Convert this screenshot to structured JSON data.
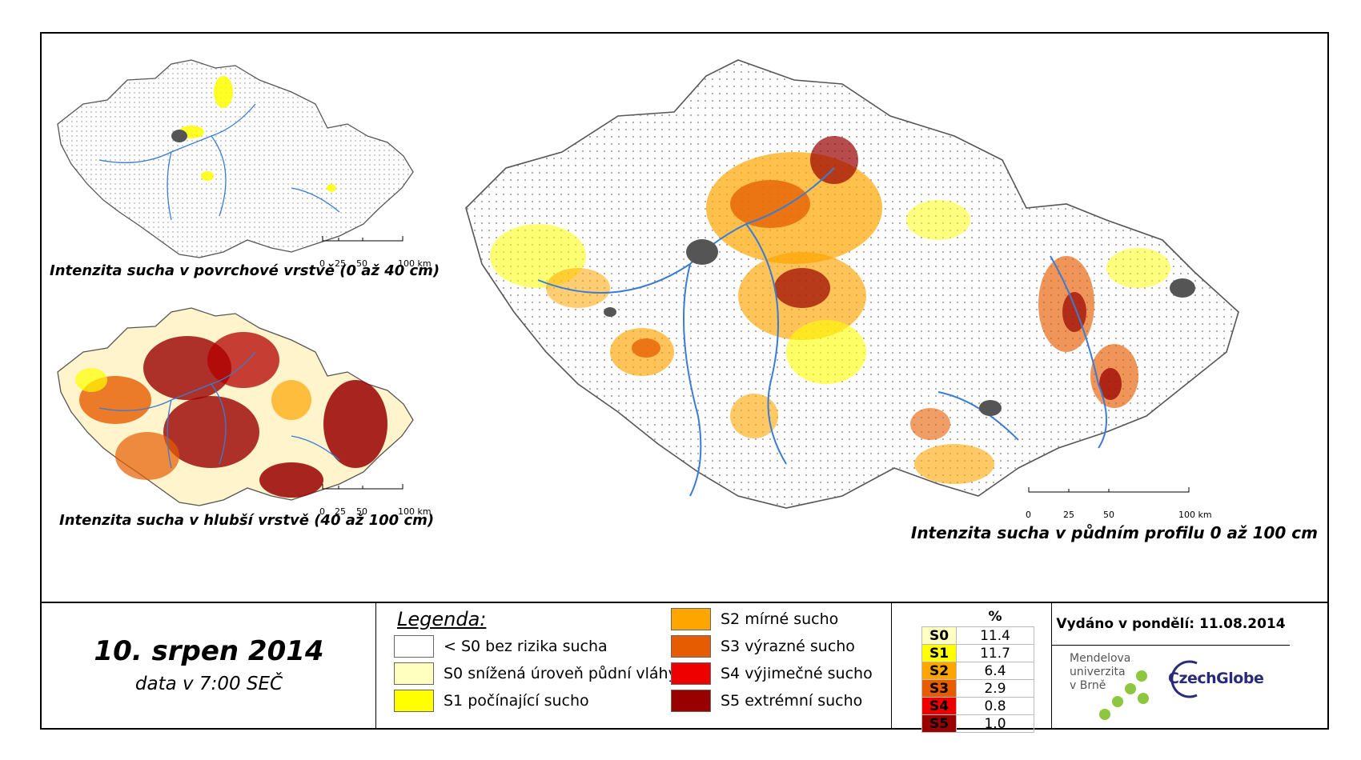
{
  "maps": {
    "surface": {
      "caption": "Intenzita sucha v povrchové vrstvě (0 až 40 cm)"
    },
    "deep": {
      "caption": "Intenzita sucha v hlubší vrstvě (40 až 100 cm)"
    },
    "profile": {
      "caption": "Intenzita sucha v půdním profilu 0 až 100 cm"
    },
    "scale_small": [
      "0",
      "25",
      "50",
      "100 km"
    ],
    "scale_large": [
      "0",
      "25",
      "50",
      "100 km"
    ]
  },
  "date_block": {
    "date": "10. srpen 2014",
    "time": "data v 7:00 SEČ"
  },
  "legend": {
    "title": "Legenda:",
    "items": [
      {
        "label": "< S0 bez rizika sucha",
        "color": "#ffffff"
      },
      {
        "label": "S0 snížená úroveň půdní vláhy",
        "color": "#ffffc0"
      },
      {
        "label": "S1 počínající sucho",
        "color": "#ffff00"
      },
      {
        "label": "S2 mírné sucho",
        "color": "#ffa500"
      },
      {
        "label": "S3 výrazné sucho",
        "color": "#e65c00"
      },
      {
        "label": "S4 výjimečné sucho",
        "color": "#ee0000"
      },
      {
        "label": "S5 extrémní sucho",
        "color": "#990000"
      }
    ]
  },
  "stats": {
    "header": "%",
    "rows": [
      {
        "code": "S0",
        "value": "11.4",
        "color": "#ffffc0"
      },
      {
        "code": "S1",
        "value": "11.7",
        "color": "#ffff00"
      },
      {
        "code": "S2",
        "value": "6.4",
        "color": "#ffa500"
      },
      {
        "code": "S3",
        "value": "2.9",
        "color": "#e65c00"
      },
      {
        "code": "S4",
        "value": "0.8",
        "color": "#ee0000"
      },
      {
        "code": "S5",
        "value": "1.0",
        "color": "#990000"
      }
    ]
  },
  "issued": "Vydáno v pondělí: 11.08.2014",
  "logos": {
    "mendel_lines": [
      "Mendelova",
      "univerzita",
      "v Brně"
    ],
    "czechglobe": "CzechGlobe"
  }
}
